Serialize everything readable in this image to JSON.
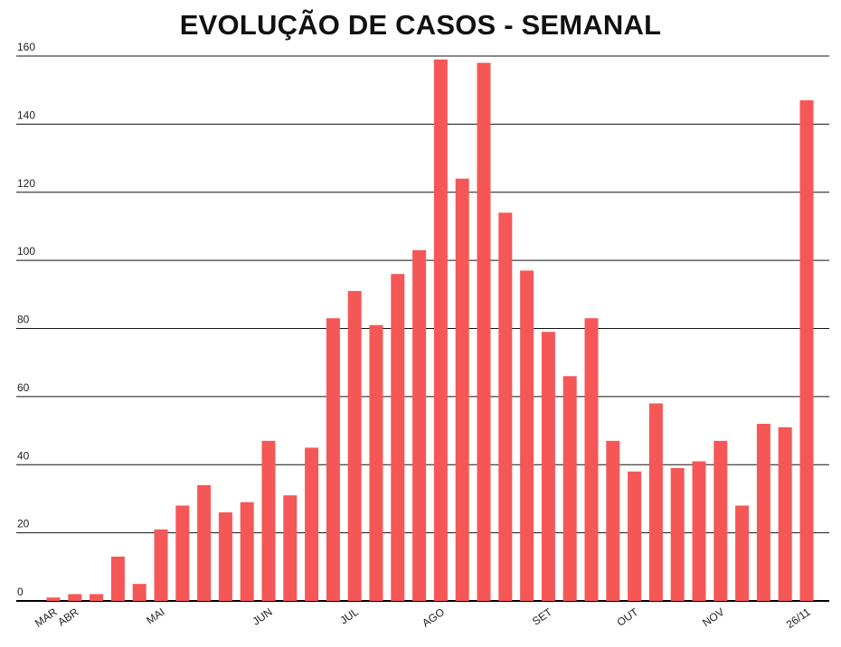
{
  "chart_data": {
    "type": "bar",
    "title": "EVOLUÇÃO DE CASOS - SEMANAL",
    "xlabel": "",
    "ylabel": "",
    "ylim": [
      0,
      160
    ],
    "yticks": [
      0,
      20,
      40,
      60,
      80,
      100,
      120,
      140,
      160
    ],
    "grid": true,
    "bar_color": "#f55757",
    "values": [
      1,
      2,
      2,
      13,
      5,
      21,
      28,
      34,
      26,
      29,
      47,
      31,
      45,
      83,
      91,
      81,
      96,
      103,
      159,
      124,
      158,
      114,
      97,
      79,
      66,
      83,
      47,
      38,
      58,
      39,
      41,
      47,
      28,
      52,
      51,
      147
    ],
    "x_tick_labels": [
      {
        "label": "MAR",
        "index": 0
      },
      {
        "label": "ABR",
        "index": 1
      },
      {
        "label": "MAI",
        "index": 5
      },
      {
        "label": "JUN",
        "index": 10
      },
      {
        "label": "JUL",
        "index": 14
      },
      {
        "label": "AGO",
        "index": 18
      },
      {
        "label": "SET",
        "index": 23
      },
      {
        "label": "OUT",
        "index": 27
      },
      {
        "label": "NOV",
        "index": 31
      },
      {
        "label": "26/11",
        "index": 35
      }
    ]
  }
}
